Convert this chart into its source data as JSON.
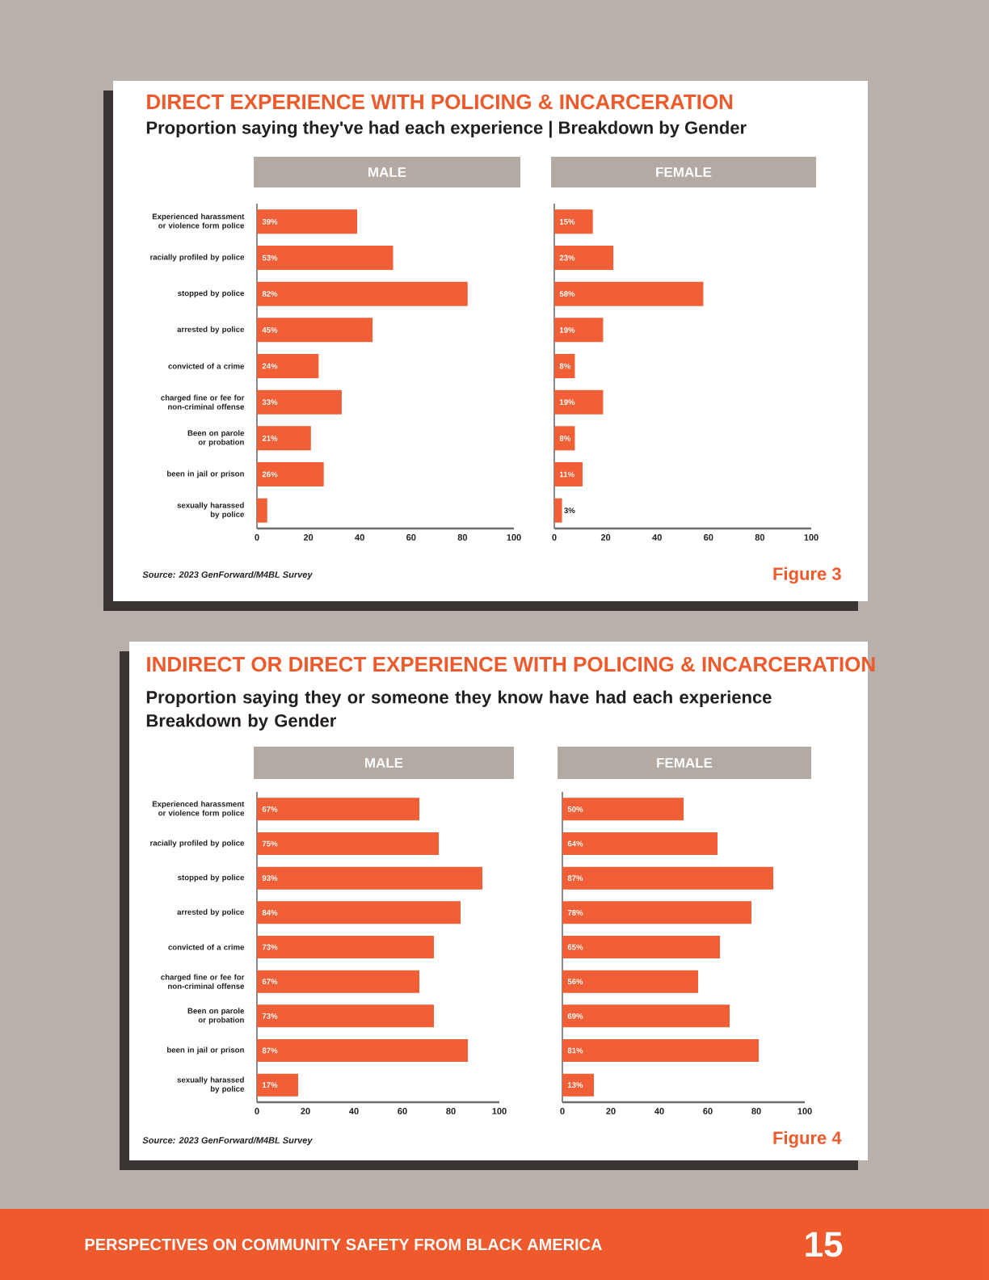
{
  "chart_data": [
    {
      "type": "bar",
      "orientation": "horizontal",
      "title": "MALE",
      "color": "#f05f35",
      "xlim": [
        0,
        100
      ],
      "xticks": [
        0,
        20,
        40,
        60,
        80,
        100
      ],
      "categories": [
        "Experienced harassment or violence form police",
        "racially profiled by police",
        "stopped by police",
        "arrested by police",
        "convicted of a crime",
        "charged fine or fee for non-criminal offense",
        "Been on parole or probation",
        "been in jail or prison",
        "sexually harassed by police"
      ],
      "values": [
        39,
        53,
        82,
        45,
        24,
        33,
        21,
        26,
        4
      ],
      "value_labels": [
        "39%",
        "53%",
        "82%",
        "45%",
        "24%",
        "33%",
        "21%",
        "26%",
        null
      ],
      "annotations": [
        "DIRECT EXPERIENCE WITH POLICING & INCARCERATION",
        "Proportion saying they've had each experience | Breakdown by Gender",
        "Source: 2023 GenForward/M4BL Survey"
      ]
    },
    {
      "type": "bar",
      "orientation": "horizontal",
      "title": "FEMALE",
      "color": "#f05f35",
      "xlim": [
        0,
        100
      ],
      "xticks": [
        0,
        20,
        40,
        60,
        80,
        100
      ],
      "categories": [
        null,
        null,
        null,
        null,
        null,
        null,
        null,
        null,
        null
      ],
      "values": [
        15,
        23,
        58,
        19,
        8,
        19,
        8,
        11,
        3
      ],
      "value_labels": [
        "15%",
        "23%",
        "58%",
        "19%",
        "8%",
        "19%",
        "8%",
        "11%",
        "3%"
      ],
      "annotations": [
        "Figure 3"
      ]
    },
    {
      "type": "bar",
      "orientation": "horizontal",
      "title": "MALE",
      "color": "#f05f35",
      "xlim": [
        0,
        100
      ],
      "xticks": [
        0,
        20,
        40,
        60,
        80,
        100
      ],
      "categories": [
        "Experienced harassment or violence form police",
        "racially profiled by police",
        "stopped by police",
        "arrested by police",
        "convicted of a crime",
        "charged fine or fee for non-criminal offense",
        "Been on parole or probation",
        "been in jail or prison",
        "sexually harassed by police"
      ],
      "values": [
        67,
        75,
        93,
        84,
        73,
        67,
        73,
        87,
        17
      ],
      "value_labels": [
        "67%",
        "75%",
        "93%",
        "84%",
        "73%",
        "67%",
        "73%",
        "87%",
        "17%"
      ],
      "annotations": [
        "INDIRECT OR DIRECT EXPERIENCE WITH POLICING & INCARCERATION",
        "Proportion saying they or someone they know have had each experience Breakdown by Gender",
        "Source: 2023 GenForward/M4BL Survey"
      ]
    },
    {
      "type": "bar",
      "orientation": "horizontal",
      "title": "FEMALE",
      "color": "#f05f35",
      "xlim": [
        0,
        100
      ],
      "xticks": [
        0,
        20,
        40,
        60,
        80,
        100
      ],
      "categories": [
        null,
        null,
        null,
        null,
        null,
        null,
        null,
        null,
        null
      ],
      "values": [
        50,
        64,
        87,
        78,
        65,
        56,
        69,
        81,
        13
      ],
      "value_labels": [
        "50%",
        "64%",
        "87%",
        "78%",
        "65%",
        "56%",
        "69%",
        "81%",
        "13%"
      ],
      "annotations": [
        "Figure 4",
        "PERSPECTIVES ON COMMUNITY SAFETY FROM BLACK AMERICA",
        "15"
      ]
    }
  ]
}
